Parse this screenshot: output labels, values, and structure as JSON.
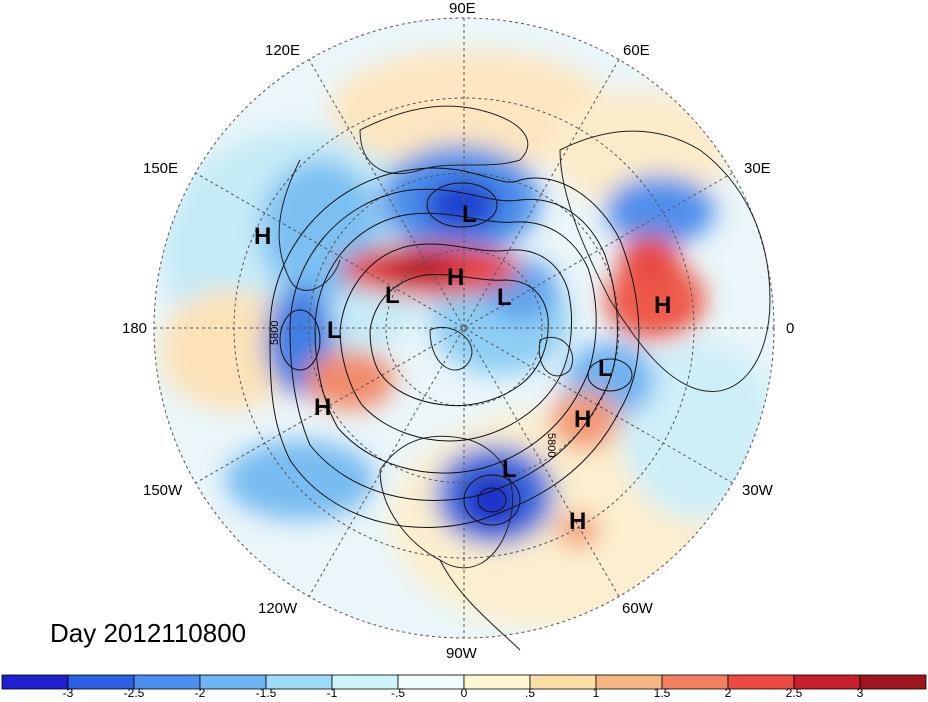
{
  "map": {
    "projection": "north polar stereographic",
    "lon_labels": [
      "90E",
      "60E",
      "30E",
      "0",
      "30W",
      "60W",
      "90W",
      "120W",
      "150W",
      "180",
      "150E",
      "120E"
    ],
    "contour_labels": [
      "5800",
      "5800"
    ]
  },
  "date_label": "Day 2012110800",
  "pressure_systems": [
    {
      "type": "H",
      "region": "west Pacific"
    },
    {
      "type": "L",
      "region": "Siberia"
    },
    {
      "type": "H",
      "region": "east Siberia"
    },
    {
      "type": "L",
      "region": "Bering"
    },
    {
      "type": "L",
      "region": "north Pacific"
    },
    {
      "type": "L",
      "region": "Arctic"
    },
    {
      "type": "H",
      "region": "Europe"
    },
    {
      "type": "L",
      "region": "North Atlantic"
    },
    {
      "type": "H",
      "region": "Gulf of Alaska"
    },
    {
      "type": "H",
      "region": "Greenland"
    },
    {
      "type": "L",
      "region": "US east coast"
    },
    {
      "type": "H",
      "region": "central Atlantic"
    }
  ],
  "colorbar": {
    "ticks": [
      "-3",
      "-2.5",
      "-2",
      "-1.5",
      "-1",
      "-.5",
      "0",
      ".5",
      "1",
      "1.5",
      "2",
      "2.5",
      "3"
    ],
    "colors": [
      "#1f1fd2",
      "#2a5fe6",
      "#4a8ff0",
      "#6fb4f5",
      "#9edbf8",
      "#cdf3fb",
      "#f0fbfd",
      "#fdf6d3",
      "#fbe0a6",
      "#f7b582",
      "#f28060",
      "#ec4a40",
      "#c81f2a",
      "#a0141e"
    ]
  }
}
